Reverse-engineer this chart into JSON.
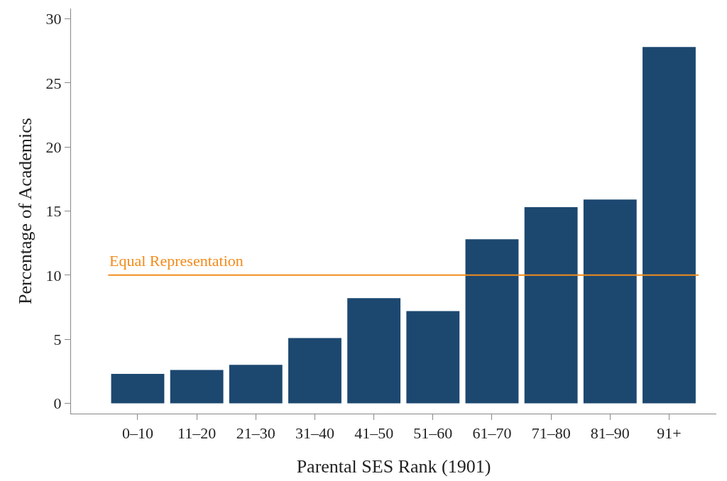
{
  "chart_data": {
    "type": "bar",
    "xlabel": "Parental SES Rank (1901)",
    "ylabel": "Percentage of Academics",
    "categories": [
      "0–10",
      "11–20",
      "21–30",
      "31–40",
      "41–50",
      "51–60",
      "61–70",
      "71–80",
      "81–90",
      "91+"
    ],
    "values": [
      2.3,
      2.6,
      3.0,
      5.1,
      8.2,
      7.2,
      12.8,
      15.3,
      15.9,
      27.8
    ],
    "color": "#1c4870",
    "ylim": [
      -0.8,
      30.8
    ],
    "yticks": [
      0,
      5,
      10,
      15,
      20,
      25,
      30
    ],
    "ref_lines": [
      {
        "axis": "y",
        "value": 10,
        "label": "Equal Representation",
        "color": "#f28c1c",
        "line_style": "solid"
      }
    ]
  }
}
